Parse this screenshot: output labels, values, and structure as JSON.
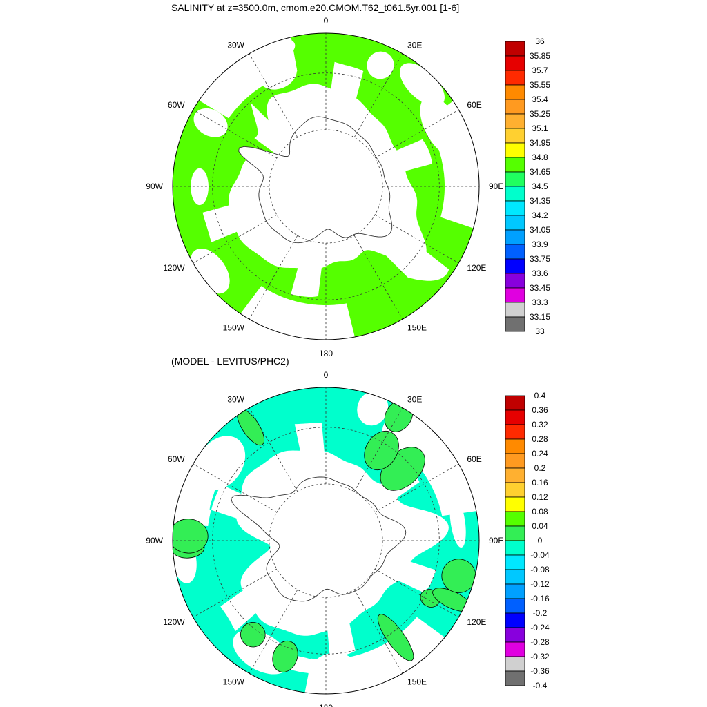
{
  "panels": [
    {
      "id": "salinity",
      "title": "SALINITY at z=3500.0m, cmom.e20.CMOM.T62_t061.5yr.001 [1-6]",
      "fill_colors": [
        "#55ff00"
      ],
      "colorbar": {
        "labels": [
          "36",
          "35.85",
          "35.7",
          "35.55",
          "35.4",
          "35.25",
          "35.1",
          "34.95",
          "34.8",
          "34.65",
          "34.5",
          "34.35",
          "34.2",
          "34.05",
          "33.9",
          "33.75",
          "33.6",
          "33.45",
          "33.3",
          "33.15",
          "33"
        ],
        "colors": [
          "#c00000",
          "#e60000",
          "#ff2a00",
          "#ff8a00",
          "#ff9a20",
          "#ffb030",
          "#ffd030",
          "#ffff00",
          "#55ff00",
          "#20ff60",
          "#00ffcc",
          "#00e8ff",
          "#00c8ff",
          "#00a0ff",
          "#0060ff",
          "#0000ff",
          "#8800dd",
          "#e000e0",
          "#d0d0d0",
          "#707070"
        ]
      }
    },
    {
      "id": "difference",
      "title": "(MODEL - LEVITUS/PHC2)",
      "fill_colors": [
        "#00ffcc",
        "#33ee55"
      ],
      "colorbar": {
        "labels": [
          "0.4",
          "0.36",
          "0.32",
          "0.28",
          "0.24",
          "0.2",
          "0.16",
          "0.12",
          "0.08",
          "0.04",
          "0",
          "-0.04",
          "-0.08",
          "-0.12",
          "-0.16",
          "-0.2",
          "-0.24",
          "-0.28",
          "-0.32",
          "-0.36",
          "-0.4"
        ],
        "colors": [
          "#c00000",
          "#e60000",
          "#ff2a00",
          "#ff8a00",
          "#ff9a20",
          "#ffb030",
          "#ffd030",
          "#ffff00",
          "#55ff00",
          "#33ee55",
          "#00ffcc",
          "#00e8ff",
          "#00c8ff",
          "#00a0ff",
          "#0060ff",
          "#0000ff",
          "#8800dd",
          "#e000e0",
          "#d0d0d0",
          "#707070"
        ]
      }
    }
  ],
  "longitude_labels": {
    "top": "0",
    "upper_left": "30W",
    "upper_right": "30E",
    "left_upper": "60W",
    "right_upper": "60E",
    "left": "90W",
    "right": "90E",
    "left_lower": "120W",
    "right_lower": "120E",
    "bottom_left": "150W",
    "bottom_right": "150E",
    "bottom": "180"
  }
}
